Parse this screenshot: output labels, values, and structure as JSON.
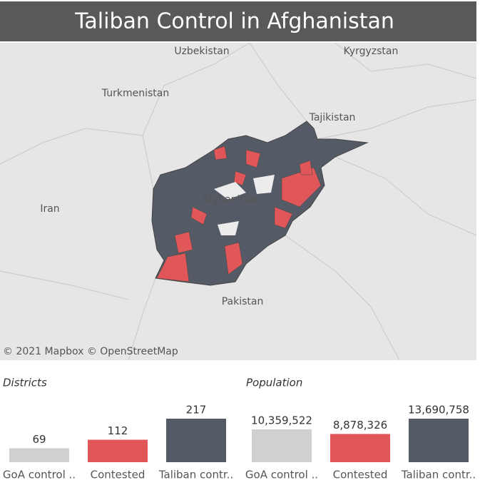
{
  "title": "Taliban Control in Afghanistan",
  "map": {
    "labels": [
      "Uzbekistan",
      "Kyrgyzstan",
      "Turkmenistan",
      "Tajikistan",
      "Iran",
      "Afghanistan",
      "Pakistan"
    ],
    "attribution": "© 2021 Mapbox © OpenStreetMap"
  },
  "chart_data": [
    {
      "type": "bar",
      "title": "Districts",
      "categories": [
        "GoA control ..",
        "Contested",
        "Taliban contr.."
      ],
      "values": [
        69,
        112,
        217
      ],
      "colors": [
        "#d0d0d0",
        "#e15759",
        "#555b66"
      ]
    },
    {
      "type": "bar",
      "title": "Population",
      "categories": [
        "GoA control ..",
        "Contested",
        "Taliban contr.."
      ],
      "values": [
        10359522,
        8878326,
        13690758
      ],
      "value_labels": [
        "10,359,522",
        "8,878,326",
        "13,690,758"
      ],
      "colors": [
        "#d0d0d0",
        "#e15759",
        "#555b66"
      ]
    }
  ]
}
